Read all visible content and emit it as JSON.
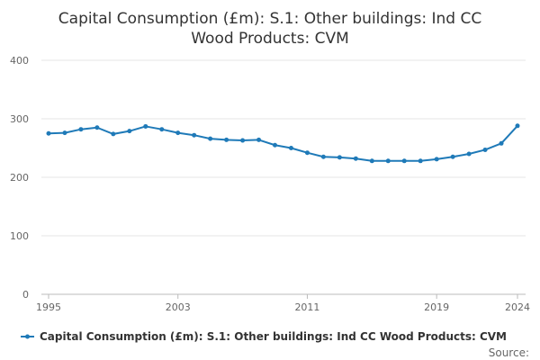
{
  "chart_data": {
    "type": "line",
    "title_lines": [
      "Capital Consumption (£m): S.1: Other buildings: Ind CC",
      "Wood Products: CVM"
    ],
    "xlabel": "",
    "ylabel": "",
    "x_range": [
      1995,
      2024
    ],
    "x_ticks": [
      "1995",
      "2003",
      "2011",
      "2019",
      "2024"
    ],
    "ylim": [
      0,
      400
    ],
    "y_ticks": [
      "0",
      "100",
      "200",
      "300",
      "400"
    ],
    "grid": "horizontal",
    "legend_position": "bottom",
    "series": [
      {
        "name": "Capital Consumption (£m): S.1: Other buildings: Ind CC Wood Products: CVM",
        "color": "#1f7ab8",
        "x": [
          1995,
          1996,
          1997,
          1998,
          1999,
          2000,
          2001,
          2002,
          2003,
          2004,
          2005,
          2006,
          2007,
          2008,
          2009,
          2010,
          2011,
          2012,
          2013,
          2014,
          2015,
          2016,
          2017,
          2018,
          2019,
          2020,
          2021,
          2022,
          2023,
          2024
        ],
        "values": [
          275,
          276,
          282,
          285,
          274,
          279,
          287,
          282,
          276,
          272,
          266,
          264,
          263,
          264,
          255,
          250,
          242,
          235,
          234,
          232,
          228,
          228,
          228,
          228,
          231,
          235,
          240,
          247,
          258,
          288
        ]
      }
    ],
    "source_label": "Source:"
  }
}
